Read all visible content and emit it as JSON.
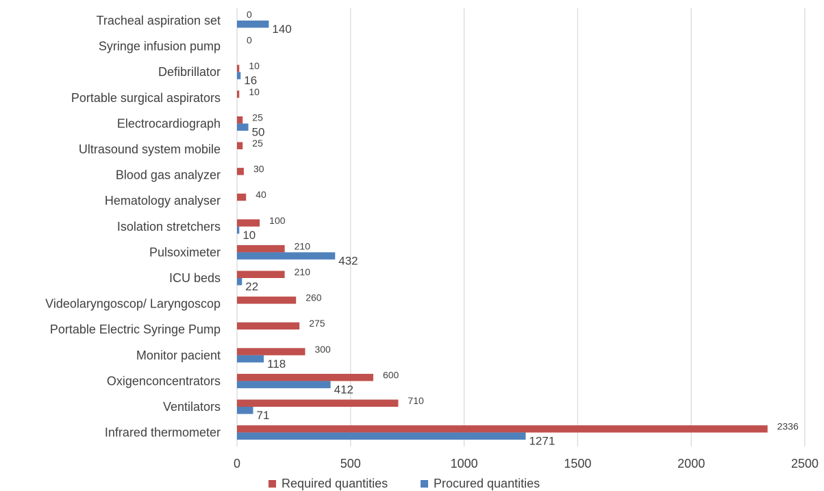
{
  "chart_data": {
    "type": "bar",
    "orientation": "horizontal",
    "title": "",
    "xlabel": "",
    "ylabel": "",
    "xlim": [
      0,
      2500
    ],
    "x_ticks": [
      0,
      500,
      1000,
      1500,
      2000,
      2500
    ],
    "grid": true,
    "legend_position": "bottom",
    "categories": [
      "Tracheal aspiration set",
      "Syringe infusion pump",
      "Defibrillator",
      "Portable surgical aspirators",
      "Electrocardiograph",
      "Ultrasound system mobile",
      "Blood gas analyzer",
      "Hematology analyser",
      "Isolation stretchers",
      "Pulsoximeter",
      "ICU beds",
      "Videolaryngoscop/ Laryngoscop",
      "Portable Electric Syringe Pump",
      "Monitor pacient",
      "Oxigenconcentrators",
      "Ventilators",
      "Infrared thermometer"
    ],
    "series": [
      {
        "name": "Required quantities",
        "color": "#c0504d",
        "values": [
          0,
          0,
          10,
          10,
          25,
          25,
          30,
          40,
          100,
          210,
          210,
          260,
          275,
          300,
          600,
          710,
          2336
        ],
        "labels": [
          "0",
          "0",
          "10",
          "10",
          "25",
          "25",
          "30",
          "40",
          "100",
          "210",
          "210",
          "260",
          "275",
          "300",
          "600",
          "710",
          "2336"
        ]
      },
      {
        "name": "Procured quantities",
        "color": "#4f81bd",
        "values": [
          140,
          null,
          16,
          null,
          50,
          null,
          null,
          null,
          10,
          432,
          22,
          null,
          null,
          118,
          412,
          71,
          1271
        ],
        "labels": [
          "140",
          "",
          "16",
          "",
          "50",
          "",
          "",
          "",
          "10",
          "432",
          "22",
          "",
          "",
          "118",
          "412",
          "71",
          "1271"
        ]
      }
    ]
  }
}
